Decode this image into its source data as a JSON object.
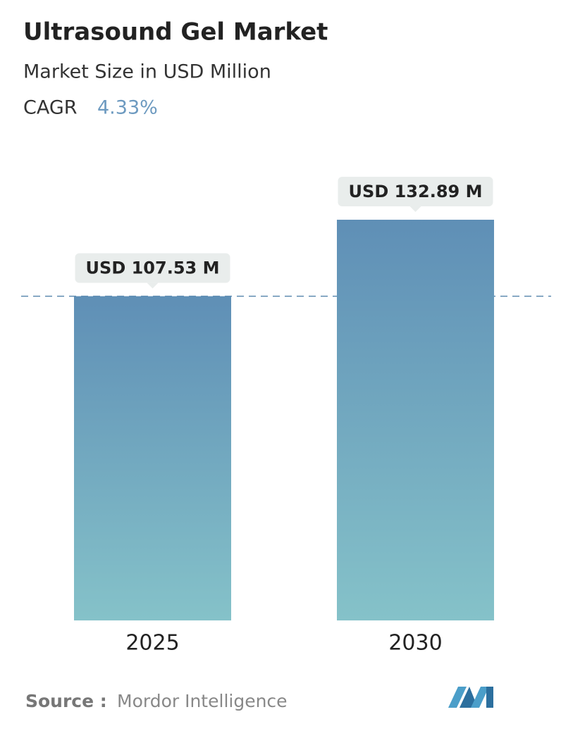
{
  "chart_data": {
    "type": "bar",
    "title": "Ultrasound Gel Market",
    "subtitle": "Market Size in USD Million",
    "cagr_label": "CAGR",
    "cagr_value": "4.33%",
    "categories": [
      "2025",
      "2030"
    ],
    "values": [
      107.53,
      132.89
    ],
    "value_labels": [
      "USD 107.53 M",
      "USD 132.89 M"
    ],
    "source_label": "Source :",
    "source": "Mordor Intelligence"
  }
}
